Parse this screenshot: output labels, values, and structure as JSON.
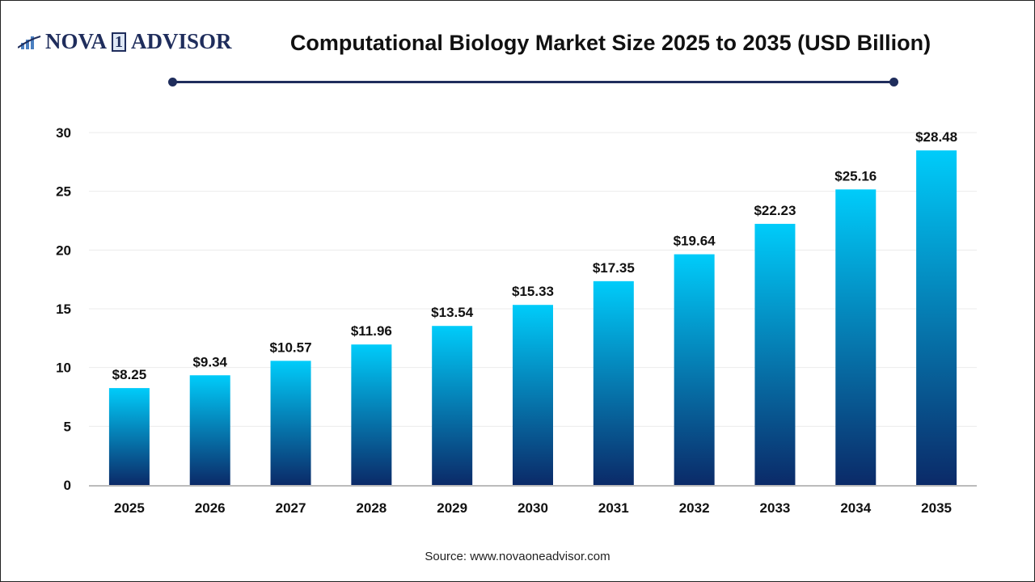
{
  "logo": {
    "text": "NOVA 1 ADVISOR",
    "part1": "NOVA",
    "part2": "1",
    "part3": "ADVISOR"
  },
  "header": {
    "title": "Computational Biology Market Size 2025 to 2035 (USD Billion)"
  },
  "source": "Source: www.novaoneadvisor.com",
  "colors": {
    "bar_top": "#00ccfa",
    "bar_bottom": "#0b2a68",
    "accent": "#1f2d5c"
  },
  "chart_data": {
    "type": "bar",
    "title": "Computational Biology Market Size 2025 to 2035 (USD Billion)",
    "xlabel": "",
    "ylabel": "",
    "categories": [
      "2025",
      "2026",
      "2027",
      "2028",
      "2029",
      "2030",
      "2031",
      "2032",
      "2033",
      "2034",
      "2035"
    ],
    "values": [
      8.25,
      9.34,
      10.57,
      11.96,
      13.54,
      15.33,
      17.35,
      19.64,
      22.23,
      25.16,
      28.48
    ],
    "data_labels": [
      "$8.25",
      "$9.34",
      "$10.57",
      "$11.96",
      "$13.54",
      "$15.33",
      "$17.35",
      "$19.64",
      "$22.23",
      "$25.16",
      "$28.48"
    ],
    "ylim": [
      0,
      30
    ],
    "yticks": [
      0,
      5,
      10,
      15,
      20,
      25,
      30
    ],
    "grid": true,
    "legend": "none"
  }
}
